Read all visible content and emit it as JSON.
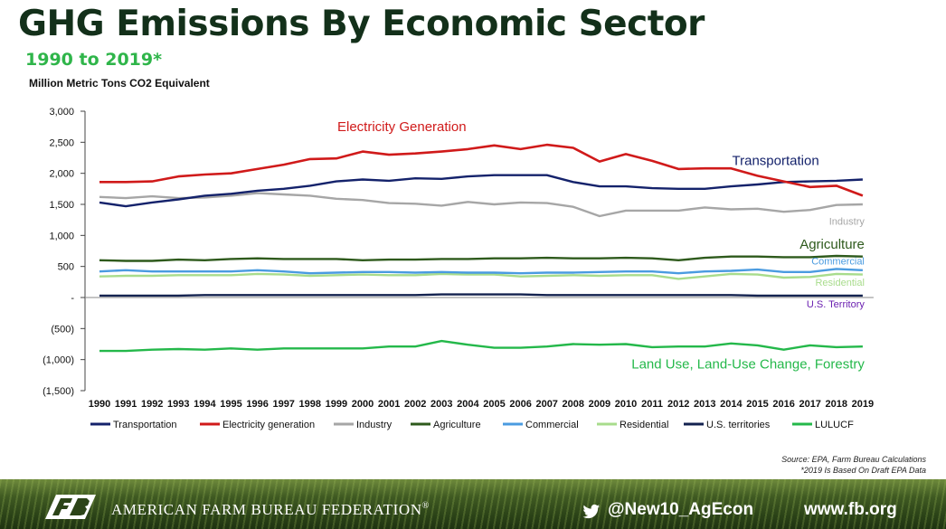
{
  "header": {
    "title": "GHG Emissions By Economic Sector",
    "subtitle": "1990 to 2019*",
    "unit": "Million Metric Tons CO2 Equivalent"
  },
  "source": {
    "line1": "Source: EPA, Farm Bureau Calculations",
    "line2": "*2019 Is Based On Draft EPA Data"
  },
  "footer": {
    "org": "AMERICAN FARM BUREAU FEDERATION",
    "registered": "®",
    "handle": "@New10_AgEcon",
    "website": "www.fb.org",
    "logo_icon": "fb-logo-icon",
    "social_icon": "twitter-bird-icon"
  },
  "chart_data": {
    "type": "line",
    "title": "GHG Emissions By Economic Sector",
    "subtitle": "1990 to 2019*",
    "ylabel": "Million Metric Tons CO2 Equivalent",
    "xlabel": "",
    "ylim": [
      -1500,
      3000
    ],
    "y_ticks": [
      3000,
      2500,
      2000,
      1500,
      1000,
      500,
      0,
      -500,
      -1000,
      -1500
    ],
    "y_tick_labels": [
      "3,000",
      "2,500",
      "2,000",
      "1,500",
      "1,000",
      "500",
      "-",
      "(500)",
      "(1,000)",
      "(1,500)"
    ],
    "grid": false,
    "legend_position": "bottom",
    "categories": [
      "1990",
      "1991",
      "1992",
      "1993",
      "1994",
      "1995",
      "1996",
      "1997",
      "1998",
      "1999",
      "2000",
      "2001",
      "2002",
      "2003",
      "2004",
      "2005",
      "2006",
      "2007",
      "2008",
      "2009",
      "2010",
      "2011",
      "2012",
      "2013",
      "2014",
      "2015",
      "2016",
      "2017",
      "2018",
      "2019"
    ],
    "series": [
      {
        "name": "Transportation",
        "color": "#14226b",
        "values": [
          1530,
          1470,
          1530,
          1580,
          1640,
          1670,
          1720,
          1750,
          1800,
          1870,
          1900,
          1880,
          1920,
          1910,
          1950,
          1970,
          1970,
          1970,
          1860,
          1790,
          1790,
          1760,
          1750,
          1750,
          1790,
          1820,
          1860,
          1870,
          1880,
          1900
        ]
      },
      {
        "name": "Electricity generation",
        "color": "#d01a1a",
        "values": [
          1860,
          1860,
          1870,
          1950,
          1980,
          2000,
          2070,
          2140,
          2230,
          2240,
          2350,
          2300,
          2320,
          2350,
          2390,
          2450,
          2390,
          2460,
          2410,
          2190,
          2310,
          2200,
          2070,
          2080,
          2080,
          1960,
          1870,
          1780,
          1800,
          1640
        ]
      },
      {
        "name": "Industry",
        "color": "#a6a6a6",
        "values": [
          1620,
          1600,
          1630,
          1600,
          1610,
          1640,
          1680,
          1660,
          1640,
          1590,
          1570,
          1520,
          1510,
          1480,
          1540,
          1500,
          1530,
          1520,
          1460,
          1310,
          1400,
          1400,
          1400,
          1450,
          1420,
          1430,
          1380,
          1410,
          1490,
          1500
        ]
      },
      {
        "name": "Agriculture",
        "color": "#2e5a1c",
        "values": [
          600,
          590,
          590,
          610,
          600,
          620,
          630,
          620,
          620,
          620,
          600,
          610,
          610,
          620,
          620,
          630,
          630,
          640,
          630,
          630,
          640,
          630,
          600,
          640,
          660,
          660,
          650,
          650,
          670,
          660
        ]
      },
      {
        "name": "Commercial",
        "color": "#4a9be0",
        "values": [
          420,
          440,
          420,
          420,
          420,
          420,
          440,
          420,
          390,
          400,
          410,
          410,
          400,
          410,
          400,
          400,
          390,
          400,
          400,
          410,
          420,
          420,
          390,
          420,
          430,
          450,
          410,
          410,
          460,
          440
        ]
      },
      {
        "name": "Residential",
        "color": "#a8dc8c",
        "values": [
          340,
          350,
          350,
          360,
          360,
          360,
          380,
          370,
          350,
          360,
          370,
          360,
          360,
          380,
          370,
          370,
          340,
          350,
          360,
          350,
          360,
          360,
          300,
          340,
          380,
          370,
          320,
          330,
          380,
          370
        ]
      },
      {
        "name": "U.S. territories",
        "color": "#13224f",
        "values": [
          30,
          30,
          30,
          30,
          40,
          40,
          40,
          40,
          40,
          40,
          40,
          40,
          40,
          50,
          50,
          50,
          50,
          40,
          40,
          40,
          40,
          40,
          40,
          40,
          40,
          30,
          30,
          30,
          30,
          30
        ]
      },
      {
        "name": "LULUCF",
        "color": "#24b84a",
        "values": [
          -860,
          -860,
          -840,
          -830,
          -840,
          -820,
          -840,
          -820,
          -820,
          -820,
          -820,
          -790,
          -790,
          -700,
          -760,
          -810,
          -810,
          -790,
          -750,
          -760,
          -750,
          -800,
          -790,
          -790,
          -740,
          -770,
          -840,
          -770,
          -800,
          -790
        ]
      }
    ],
    "annotations": [
      {
        "text": "Electricity Generation",
        "color": "#d01a1a",
        "year": "2000",
        "value": 2680,
        "anchor": "start",
        "size": 15
      },
      {
        "text": "Transportation",
        "color": "#14226b",
        "year": "2015",
        "value": 2130,
        "anchor": "start",
        "size": 15
      },
      {
        "text": "Industry",
        "color": "#a6a6a6",
        "year": "2019",
        "value": 1170,
        "anchor": "end",
        "size": 11
      },
      {
        "text": "Agriculture",
        "color": "#2e5a1c",
        "year": "2019",
        "value": 790,
        "anchor": "end",
        "size": 15
      },
      {
        "text": "Commercial",
        "color": "#4a9be0",
        "year": "2019",
        "value": 530,
        "anchor": "end",
        "size": 11
      },
      {
        "text": "Residential",
        "color": "#a8dc8c",
        "year": "2019",
        "value": 190,
        "anchor": "end",
        "size": 11
      },
      {
        "text": "U.S. Territory",
        "color": "#6a1fb0",
        "year": "2019",
        "value": -160,
        "anchor": "end",
        "size": 11
      },
      {
        "text": "Land Use, Land-Use Change, Forestry",
        "color": "#24b84a",
        "year": "2019",
        "value": -1140,
        "anchor": "end",
        "size": 15
      }
    ]
  }
}
